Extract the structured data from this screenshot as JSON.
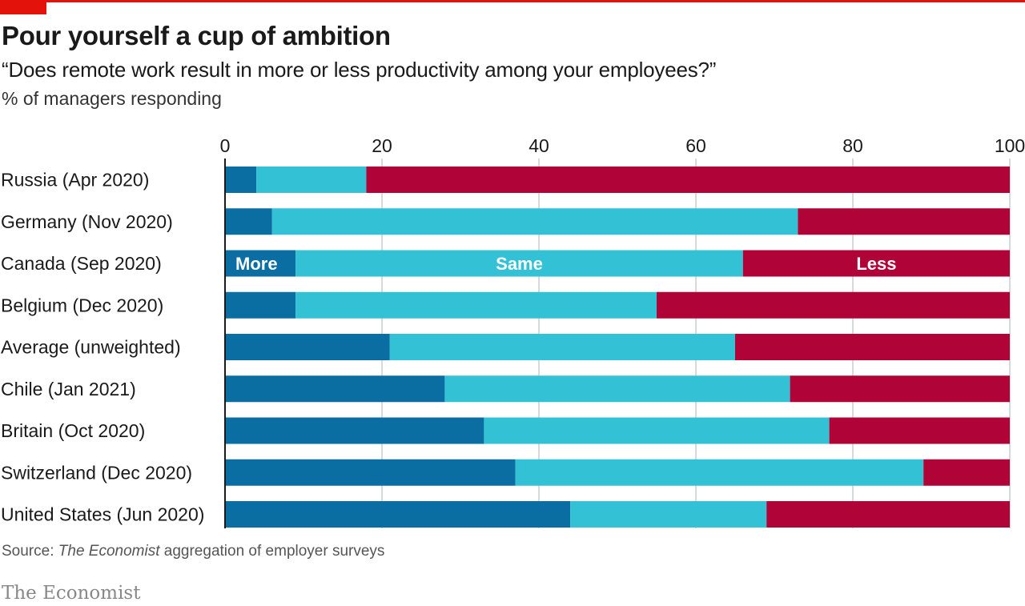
{
  "header": {
    "title": "Pour yourself a cup of ambition",
    "subtitle": "“Does remote work result in more or less productivity among your employees?”",
    "unit_label": "% of managers responding"
  },
  "footer": {
    "source_prefix": "Source: ",
    "source_italic": "The Economist",
    "source_suffix": " aggregation of employer surveys",
    "brand": "The Economist"
  },
  "colors": {
    "more": "#0b6ea3",
    "same": "#33c1d6",
    "less": "#b00337",
    "grid": "#c9cdd1",
    "accent": "#e3120b"
  },
  "chart_data": {
    "type": "bar",
    "orientation": "horizontal",
    "stacked": true,
    "xlim": [
      0,
      100
    ],
    "xticks": [
      0,
      20,
      40,
      60,
      80,
      100
    ],
    "xticks_position": "top",
    "grid": true,
    "legend_placement": "inline labels on Canada (Sep 2020) bar",
    "legend_row_index": 2,
    "categories": [
      "Russia (Apr 2020)",
      "Germany (Nov 2020)",
      "Canada (Sep 2020)",
      "Belgium (Dec 2020)",
      "Average (unweighted)",
      "Chile (Jan 2021)",
      "Britain (Oct 2020)",
      "Switzerland (Dec 2020)",
      "United States (Jun 2020)"
    ],
    "series": [
      {
        "name": "More",
        "values": [
          4,
          6,
          9,
          9,
          21,
          28,
          33,
          37,
          44
        ]
      },
      {
        "name": "Same",
        "values": [
          14,
          67,
          57,
          46,
          44,
          44,
          44,
          52,
          25
        ]
      },
      {
        "name": "Less",
        "values": [
          82,
          27,
          34,
          45,
          35,
          28,
          23,
          11,
          31
        ]
      }
    ]
  }
}
